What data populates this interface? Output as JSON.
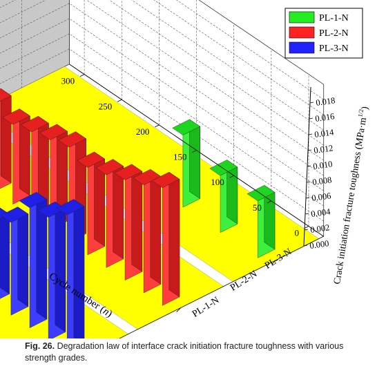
{
  "caption": {
    "label": "Fig. 26.",
    "text": "Degradation law of interface crack initiation fracture toughness with various strength grades."
  },
  "chart_data": {
    "type": "bar3d",
    "title": "",
    "zlabel": "Crack initiation fracture toughness (MPa·m^1/2)",
    "zlabel_main": "Crack initiation fracture toughness",
    "zlabel_unit_left": "(MPa·m",
    "zlabel_unit_exp": "1/2",
    "zlabel_unit_right": ")",
    "ylabel_main": "Cycle number",
    "ylabel_var": "n",
    "ylabel_paren_open": "(",
    "ylabel_paren_close": ")",
    "zlim": [
      0,
      0.018
    ],
    "z_ticks": [
      "0.000",
      "0.002",
      "0.004",
      "0.006",
      "0.008",
      "0.010",
      "0.012",
      "0.014",
      "0.016",
      "0.018"
    ],
    "ylim": [
      0,
      300
    ],
    "y_ticks": [
      "0",
      "50",
      "100",
      "150",
      "200",
      "250",
      "300"
    ],
    "grid": true,
    "legend_position": "top-right",
    "series": [
      {
        "name": "PL-1-N",
        "color": "#22ee22",
        "floor_color": "#ffff00",
        "cycles": [
          0,
          50,
          100
        ],
        "values": [
          0.0075,
          0.0075,
          0.0095
        ]
      },
      {
        "name": "PL-2-N",
        "color": "#ff2222",
        "floor_color": "#ffff00",
        "cycles": [
          0,
          25,
          50,
          75,
          100,
          125,
          150,
          175,
          200,
          225,
          250,
          275,
          300
        ],
        "values": [
          0.0155,
          0.0142,
          0.0132,
          0.0122,
          0.0115,
          0.0125,
          0.0118,
          0.0112,
          0.0105,
          0.0115,
          0.0105,
          0.0098,
          0.0095
        ]
      },
      {
        "name": "PL-3-N",
        "color": "#2222ff",
        "floor_color": "#ffff00",
        "cycles": [
          0,
          25,
          50,
          75,
          100,
          125,
          150,
          175,
          200,
          225,
          250,
          275,
          300
        ],
        "values": [
          0.0182,
          0.0162,
          0.0158,
          0.0122,
          0.0105,
          0.0108,
          0.01,
          0.0118,
          0.0112,
          0.0112,
          0.0106,
          0.0101,
          0.0101
        ]
      }
    ]
  }
}
